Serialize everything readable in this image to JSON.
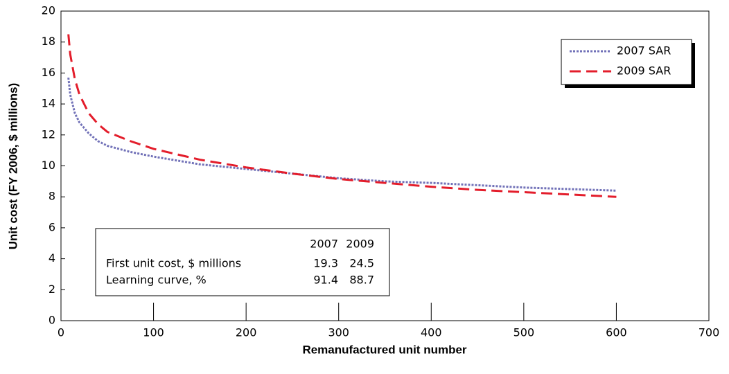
{
  "chart_data": {
    "type": "line",
    "xlabel": "Remanufactured unit number",
    "ylabel": "Unit cost (FY 2006, $ millions)",
    "x": [
      8,
      10,
      15,
      20,
      30,
      40,
      50,
      75,
      100,
      150,
      200,
      250,
      300,
      350,
      400,
      450,
      500,
      550,
      600
    ],
    "series": [
      {
        "name": "2007 SAR",
        "color": "#7272b8",
        "dash": "dotted",
        "values": [
          15.7,
          14.6,
          13.4,
          12.8,
          12.1,
          11.6,
          11.3,
          10.9,
          10.6,
          10.1,
          9.8,
          9.5,
          9.2,
          9.0,
          8.9,
          8.75,
          8.6,
          8.5,
          8.4
        ]
      },
      {
        "name": "2009 SAR",
        "color": "#e31d2b",
        "dash": "dashed",
        "values": [
          18.5,
          17.2,
          15.6,
          14.6,
          13.4,
          12.7,
          12.2,
          11.6,
          11.1,
          10.4,
          9.9,
          9.5,
          9.15,
          8.9,
          8.65,
          8.45,
          8.3,
          8.15,
          8.0
        ]
      }
    ],
    "xlim": [
      0,
      700
    ],
    "xticks": [
      0,
      100,
      200,
      300,
      400,
      500,
      600,
      700
    ],
    "ylim": [
      0,
      20
    ],
    "yticks": [
      0,
      2,
      4,
      6,
      8,
      10,
      12,
      14,
      16,
      18,
      20
    ],
    "legend": "upper right",
    "inset_table": {
      "columns": [
        "2007",
        "2009"
      ],
      "rows": [
        [
          "First unit cost, $ millions",
          19.3,
          24.5
        ],
        [
          "Learning curve, %",
          91.4,
          88.7
        ]
      ]
    }
  }
}
